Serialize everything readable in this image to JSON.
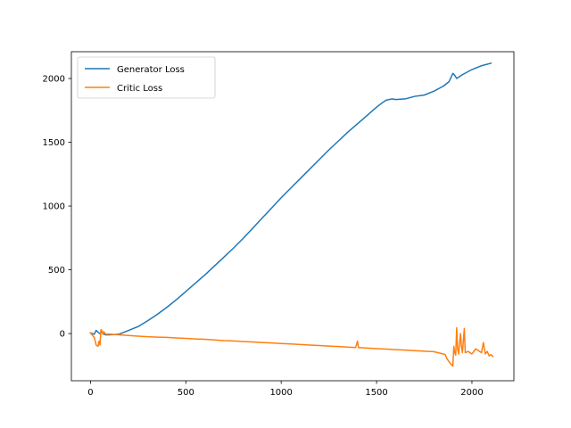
{
  "chart_data": {
    "type": "line",
    "title": "",
    "xlabel": "",
    "ylabel": "",
    "xlim": [
      -100,
      2220
    ],
    "ylim": [
      -370,
      2210
    ],
    "x_ticks": [
      0,
      500,
      1000,
      1500,
      2000
    ],
    "y_ticks": [
      0,
      500,
      1000,
      1500,
      2000
    ],
    "x_tick_labels": [
      "0",
      "500",
      "1000",
      "1500",
      "2000"
    ],
    "y_tick_labels": [
      "0",
      "500",
      "1000",
      "1500",
      "2000"
    ],
    "grid": false,
    "legend_position": "top-left",
    "series": [
      {
        "name": "Generator Loss",
        "color": "#1f77b4",
        "points": [
          [
            0,
            5
          ],
          [
            20,
            -5
          ],
          [
            30,
            25
          ],
          [
            40,
            10
          ],
          [
            50,
            0
          ],
          [
            60,
            15
          ],
          [
            70,
            -5
          ],
          [
            80,
            -10
          ],
          [
            100,
            -10
          ],
          [
            150,
            -5
          ],
          [
            200,
            25
          ],
          [
            250,
            55
          ],
          [
            300,
            100
          ],
          [
            350,
            150
          ],
          [
            400,
            205
          ],
          [
            450,
            265
          ],
          [
            500,
            330
          ],
          [
            550,
            395
          ],
          [
            600,
            460
          ],
          [
            650,
            530
          ],
          [
            700,
            600
          ],
          [
            750,
            670
          ],
          [
            800,
            745
          ],
          [
            850,
            825
          ],
          [
            900,
            905
          ],
          [
            950,
            985
          ],
          [
            1000,
            1065
          ],
          [
            1050,
            1140
          ],
          [
            1100,
            1215
          ],
          [
            1150,
            1290
          ],
          [
            1200,
            1365
          ],
          [
            1250,
            1440
          ],
          [
            1300,
            1510
          ],
          [
            1350,
            1580
          ],
          [
            1400,
            1645
          ],
          [
            1450,
            1710
          ],
          [
            1500,
            1775
          ],
          [
            1530,
            1810
          ],
          [
            1550,
            1830
          ],
          [
            1580,
            1840
          ],
          [
            1600,
            1835
          ],
          [
            1650,
            1840
          ],
          [
            1700,
            1860
          ],
          [
            1750,
            1870
          ],
          [
            1800,
            1900
          ],
          [
            1850,
            1940
          ],
          [
            1880,
            1975
          ],
          [
            1900,
            2040
          ],
          [
            1910,
            2025
          ],
          [
            1920,
            2000
          ],
          [
            1950,
            2030
          ],
          [
            2000,
            2070
          ],
          [
            2050,
            2100
          ],
          [
            2100,
            2120
          ]
        ]
      },
      {
        "name": "Critic Loss",
        "color": "#ff7f0e",
        "points": [
          [
            0,
            5
          ],
          [
            20,
            -30
          ],
          [
            30,
            -90
          ],
          [
            40,
            -100
          ],
          [
            45,
            -60
          ],
          [
            50,
            -90
          ],
          [
            55,
            30
          ],
          [
            60,
            25
          ],
          [
            65,
            -5
          ],
          [
            70,
            15
          ],
          [
            80,
            -5
          ],
          [
            100,
            -5
          ],
          [
            150,
            -10
          ],
          [
            200,
            -15
          ],
          [
            250,
            -20
          ],
          [
            300,
            -25
          ],
          [
            350,
            -28
          ],
          [
            400,
            -30
          ],
          [
            450,
            -34
          ],
          [
            500,
            -38
          ],
          [
            550,
            -42
          ],
          [
            600,
            -45
          ],
          [
            650,
            -50
          ],
          [
            700,
            -55
          ],
          [
            750,
            -58
          ],
          [
            800,
            -62
          ],
          [
            850,
            -66
          ],
          [
            900,
            -70
          ],
          [
            950,
            -74
          ],
          [
            1000,
            -78
          ],
          [
            1050,
            -82
          ],
          [
            1100,
            -86
          ],
          [
            1150,
            -90
          ],
          [
            1200,
            -94
          ],
          [
            1250,
            -98
          ],
          [
            1300,
            -102
          ],
          [
            1350,
            -106
          ],
          [
            1390,
            -110
          ],
          [
            1400,
            -60
          ],
          [
            1405,
            -110
          ],
          [
            1450,
            -114
          ],
          [
            1500,
            -118
          ],
          [
            1550,
            -122
          ],
          [
            1600,
            -126
          ],
          [
            1650,
            -130
          ],
          [
            1700,
            -134
          ],
          [
            1750,
            -138
          ],
          [
            1800,
            -142
          ],
          [
            1850,
            -160
          ],
          [
            1860,
            -165
          ],
          [
            1870,
            -200
          ],
          [
            1880,
            -220
          ],
          [
            1890,
            -240
          ],
          [
            1900,
            -255
          ],
          [
            1905,
            -100
          ],
          [
            1910,
            -150
          ],
          [
            1915,
            -170
          ],
          [
            1920,
            45
          ],
          [
            1925,
            -120
          ],
          [
            1930,
            -160
          ],
          [
            1940,
            0
          ],
          [
            1945,
            -100
          ],
          [
            1950,
            -150
          ],
          [
            1960,
            40
          ],
          [
            1965,
            -150
          ],
          [
            1980,
            -140
          ],
          [
            2000,
            -160
          ],
          [
            2020,
            -120
          ],
          [
            2050,
            -150
          ],
          [
            2060,
            -70
          ],
          [
            2070,
            -160
          ],
          [
            2080,
            -140
          ],
          [
            2090,
            -175
          ],
          [
            2100,
            -165
          ],
          [
            2110,
            -180
          ]
        ]
      }
    ]
  }
}
